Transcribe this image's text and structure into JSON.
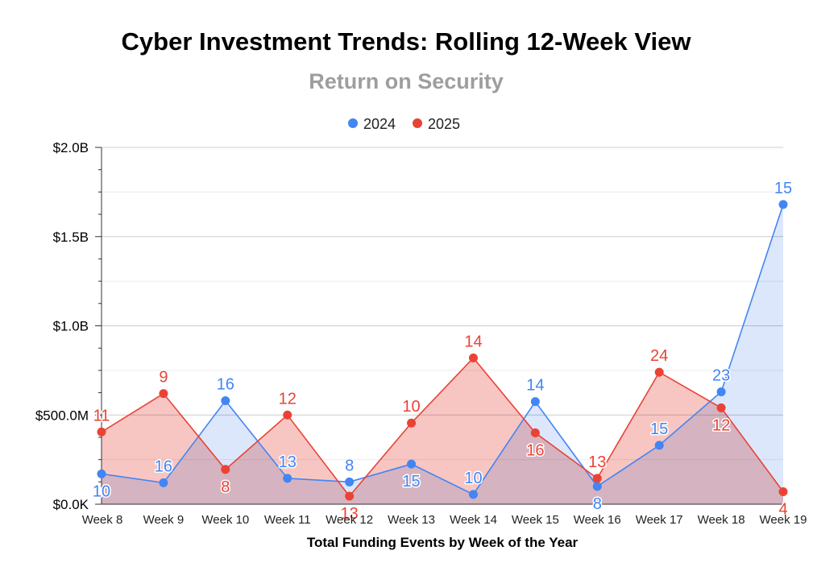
{
  "chart_data": {
    "type": "area",
    "title": "Cyber Investment Trends: Rolling 12-Week View",
    "subtitle": "Return on Security",
    "xlabel": "Total Funding Events by Week of the Year",
    "ylabel": "",
    "ylim": [
      0,
      2000000000
    ],
    "yticks": [
      {
        "value": 0,
        "label": "$0.0K"
      },
      {
        "value": 500000000,
        "label": "$500.0M"
      },
      {
        "value": 1000000000,
        "label": "$1.0B"
      },
      {
        "value": 1500000000,
        "label": "$1.5B"
      },
      {
        "value": 2000000000,
        "label": "$2.0B"
      }
    ],
    "grid": true,
    "legend_position": "top-center",
    "categories": [
      "Week 8",
      "Week 9",
      "Week 10",
      "Week 11",
      "Week 12",
      "Week 13",
      "Week 14",
      "Week 15",
      "Week 16",
      "Week 17",
      "Week 18",
      "Week 19"
    ],
    "series": [
      {
        "name": "2024",
        "color": "#4285f4",
        "fill": "#c6d9fa",
        "values": [
          170000000,
          120000000,
          580000000,
          145000000,
          125000000,
          225000000,
          55000000,
          575000000,
          100000000,
          330000000,
          630000000,
          1680000000
        ],
        "labels": [
          "10",
          "16",
          "16",
          "13",
          "8",
          "15",
          "10",
          "14",
          "8",
          "15",
          "23",
          "15"
        ]
      },
      {
        "name": "2025",
        "color": "#ea4335",
        "fill": "#f6bcb8",
        "values": [
          405000000,
          620000000,
          195000000,
          500000000,
          45000000,
          455000000,
          820000000,
          400000000,
          145000000,
          740000000,
          540000000,
          70000000
        ],
        "labels": [
          "11",
          "9",
          "8",
          "12",
          "13",
          "10",
          "14",
          "16",
          "13",
          "24",
          "12",
          "4"
        ]
      }
    ]
  }
}
